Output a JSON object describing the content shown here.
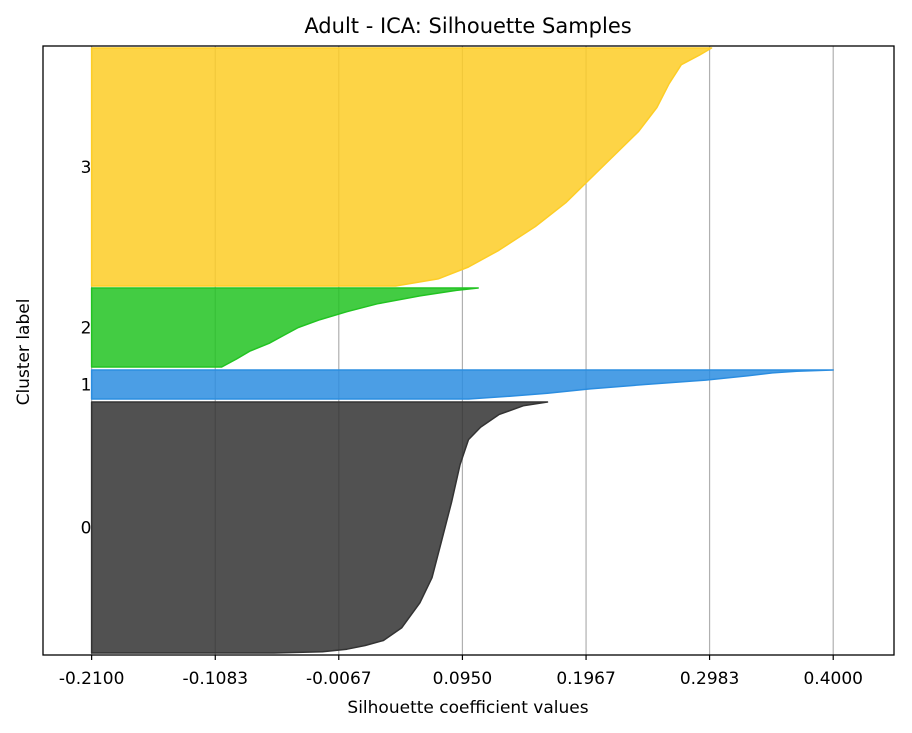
{
  "chart_data": {
    "type": "area",
    "title": "Adult - ICA: Silhouette Samples",
    "xlabel": "Silhouette coefficient values",
    "ylabel": "Cluster label",
    "xlim": [
      -0.25,
      0.45
    ],
    "x_ticks": [
      "-0.2100",
      "-0.1083",
      "-0.0067",
      "0.0950",
      "0.1967",
      "0.2983",
      "0.4000"
    ],
    "x_tick_values": [
      -0.21,
      -0.1083,
      -0.0067,
      0.095,
      0.1967,
      0.2983,
      0.4
    ],
    "baseline": -0.21,
    "grid": "vertical",
    "clusters": [
      {
        "label": "0",
        "color": "#333333",
        "sorted_profile": [
          [
            0.0,
            -0.06
          ],
          [
            0.005,
            -0.02
          ],
          [
            0.015,
            0.0
          ],
          [
            0.03,
            0.015
          ],
          [
            0.05,
            0.03
          ],
          [
            0.1,
            0.045
          ],
          [
            0.2,
            0.06
          ],
          [
            0.3,
            0.07
          ],
          [
            0.45,
            0.078
          ],
          [
            0.6,
            0.086
          ],
          [
            0.75,
            0.093
          ],
          [
            0.85,
            0.1
          ],
          [
            0.9,
            0.11
          ],
          [
            0.95,
            0.125
          ],
          [
            0.985,
            0.145
          ],
          [
            1.0,
            0.165
          ]
        ]
      },
      {
        "label": "1",
        "color": "#2b8de0",
        "sorted_profile": [
          [
            0.0,
            0.1
          ],
          [
            0.1,
            0.135
          ],
          [
            0.2,
            0.165
          ],
          [
            0.35,
            0.2
          ],
          [
            0.5,
            0.245
          ],
          [
            0.65,
            0.295
          ],
          [
            0.8,
            0.33
          ],
          [
            0.9,
            0.35
          ],
          [
            0.96,
            0.37
          ],
          [
            1.0,
            0.4
          ]
        ]
      },
      {
        "label": "2",
        "color": "#22c322",
        "sorted_profile": [
          [
            0.0,
            -0.103
          ],
          [
            0.1,
            -0.091
          ],
          [
            0.2,
            -0.08
          ],
          [
            0.3,
            -0.064
          ],
          [
            0.4,
            -0.052
          ],
          [
            0.5,
            -0.04
          ],
          [
            0.6,
            -0.022
          ],
          [
            0.7,
            0.0
          ],
          [
            0.8,
            0.025
          ],
          [
            0.9,
            0.06
          ],
          [
            0.97,
            0.09
          ],
          [
            1.0,
            0.108
          ]
        ]
      },
      {
        "label": "3",
        "color": "#fdcd26",
        "sorted_profile": [
          [
            0.0,
            0.04
          ],
          [
            0.03,
            0.075
          ],
          [
            0.08,
            0.1
          ],
          [
            0.15,
            0.125
          ],
          [
            0.25,
            0.155
          ],
          [
            0.35,
            0.18
          ],
          [
            0.45,
            0.2
          ],
          [
            0.55,
            0.22
          ],
          [
            0.65,
            0.24
          ],
          [
            0.75,
            0.255
          ],
          [
            0.85,
            0.265
          ],
          [
            0.93,
            0.275
          ],
          [
            0.97,
            0.29
          ],
          [
            1.0,
            0.3
          ]
        ]
      }
    ]
  }
}
